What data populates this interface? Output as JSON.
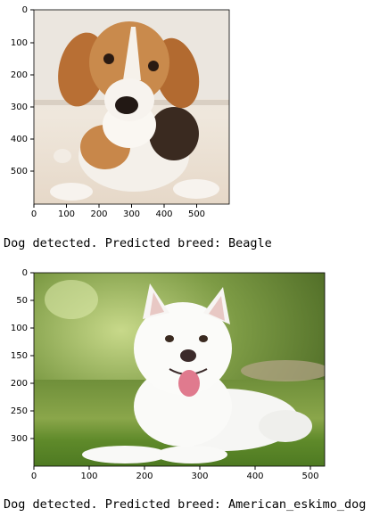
{
  "outputs": [
    {
      "image": {
        "description": "beagle puppy lying on a cream couch",
        "x_ticks": [
          "0",
          "100",
          "200",
          "300",
          "400",
          "500"
        ],
        "y_ticks": [
          "0",
          "100",
          "200",
          "300",
          "400",
          "500"
        ]
      },
      "result_text": "Dog detected. Predicted breed: Beagle"
    },
    {
      "image": {
        "description": "white fluffy dog lying on green grass",
        "x_ticks": [
          "0",
          "100",
          "200",
          "300",
          "400",
          "500"
        ],
        "y_ticks": [
          "0",
          "50",
          "100",
          "150",
          "200",
          "250",
          "300"
        ]
      },
      "result_text": "Dog detected. Predicted breed: American_eskimo_dog"
    }
  ]
}
